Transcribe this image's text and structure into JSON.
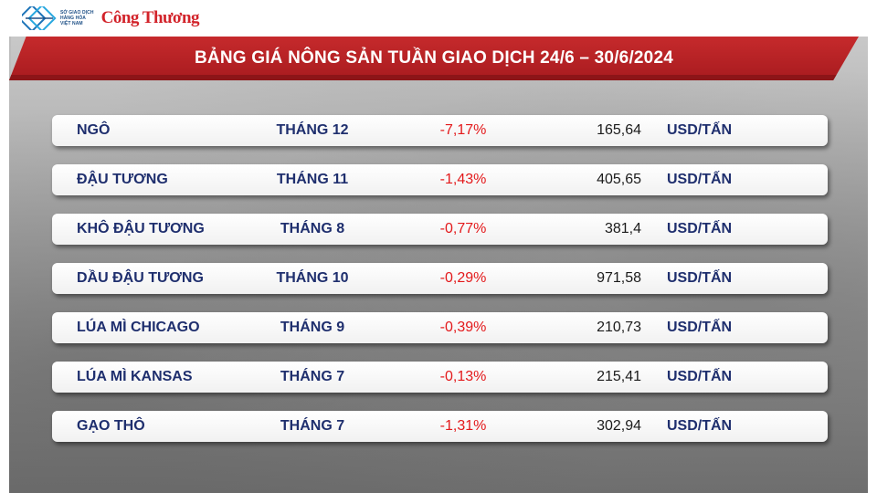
{
  "header": {
    "org_lines": [
      "SỞ GIAO DỊCH",
      "HÀNG HÓA",
      "VIỆT NAM"
    ],
    "brand": "Công Thương",
    "title": "BẢNG GIÁ NÔNG SẢN TUẦN GIAO DỊCH 24/6 – 30/6/2024"
  },
  "colors": {
    "banner_red": "#c62a2c",
    "label_navy": "#1f2f6e",
    "change_red": "#e3191b"
  },
  "rows": [
    {
      "name": "NGÔ",
      "month": "THÁNG 12",
      "change": "-7,17%",
      "price": "165,64",
      "unit": "USD/TẤN"
    },
    {
      "name": "ĐẬU TƯƠNG",
      "month": "THÁNG 11",
      "change": "-1,43%",
      "price": "405,65",
      "unit": "USD/TẤN"
    },
    {
      "name": "KHÔ ĐẬU TƯƠNG",
      "month": "THÁNG 8",
      "change": "-0,77%",
      "price": "381,4",
      "unit": "USD/TẤN"
    },
    {
      "name": "DẦU ĐẬU TƯƠNG",
      "month": "THÁNG 10",
      "change": "-0,29%",
      "price": "971,58",
      "unit": "USD/TẤN"
    },
    {
      "name": "LÚA MÌ CHICAGO",
      "month": "THÁNG 9",
      "change": "-0,39%",
      "price": "210,73",
      "unit": "USD/TẤN"
    },
    {
      "name": "LÚA MÌ KANSAS",
      "month": "THÁNG 7",
      "change": "-0,13%",
      "price": "215,41",
      "unit": "USD/TẤN"
    },
    {
      "name": "GẠO THÔ",
      "month": "THÁNG 7",
      "change": "-1,31%",
      "price": "302,94",
      "unit": "USD/TẤN"
    }
  ]
}
